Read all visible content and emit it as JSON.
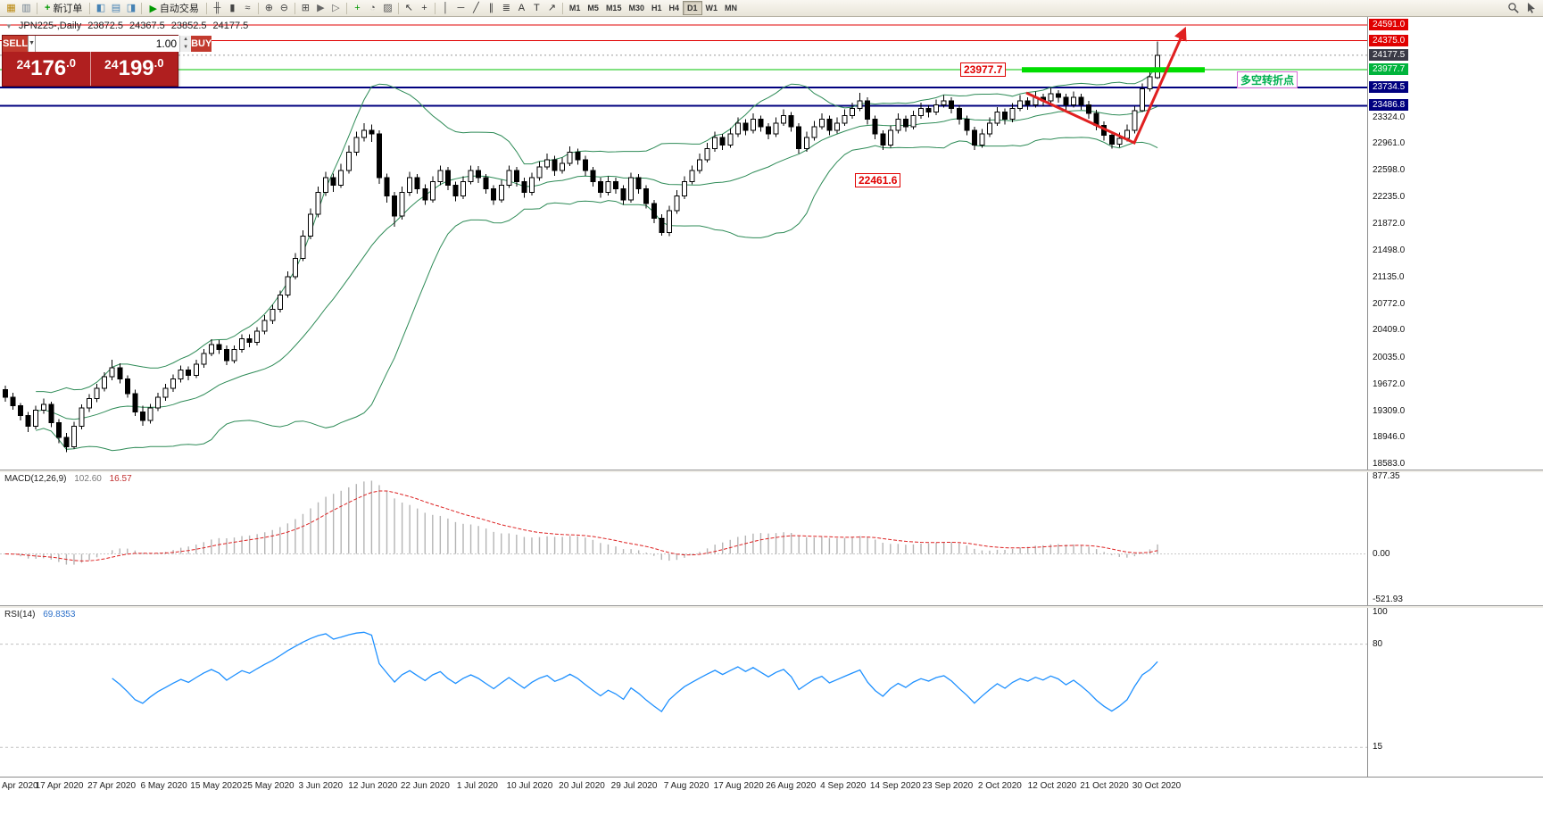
{
  "toolbar": {
    "groups": [
      {
        "items": [
          {
            "name": "new-chart-icon",
            "glyph": "▦",
            "color": "#b8860b"
          },
          {
            "name": "profiles-icon",
            "glyph": "▥",
            "color": "#708090"
          }
        ]
      },
      {
        "items": [
          {
            "name": "new-order-button",
            "label": "新订单",
            "glyph": "+",
            "glyph_color": "#009900"
          }
        ]
      },
      {
        "items": [
          {
            "name": "market-watch-icon",
            "glyph": "◧",
            "color": "#4682b4"
          },
          {
            "name": "data-window-icon",
            "glyph": "▤",
            "color": "#4682b4"
          },
          {
            "name": "navigator-icon",
            "glyph": "◨",
            "color": "#4682b4"
          }
        ]
      },
      {
        "items": [
          {
            "name": "autotrading-button",
            "label": "自动交易",
            "glyph": "▶",
            "glyph_color": "#009900"
          }
        ]
      },
      {
        "items": [
          {
            "name": "bar-chart-icon",
            "glyph": "╫",
            "color": "#444"
          },
          {
            "name": "candle-chart-icon",
            "glyph": "▮",
            "color": "#444"
          },
          {
            "name": "line-chart-icon",
            "glyph": "≈",
            "color": "#444"
          }
        ]
      },
      {
        "items": [
          {
            "name": "zoom-in-icon",
            "glyph": "⊕",
            "color": "#444"
          },
          {
            "name": "zoom-out-icon",
            "glyph": "⊖",
            "color": "#444"
          }
        ]
      },
      {
        "items": [
          {
            "name": "tile-windows-icon",
            "glyph": "⊞",
            "color": "#444"
          },
          {
            "name": "auto-scroll-icon",
            "glyph": "▶",
            "color": "#666"
          },
          {
            "name": "chart-shift-icon",
            "glyph": "▷",
            "color": "#666"
          }
        ]
      },
      {
        "items": [
          {
            "name": "indicators-icon",
            "glyph": "+",
            "color": "#009900"
          },
          {
            "name": "periods-list-icon",
            "glyph": "◔",
            "color": "#555"
          },
          {
            "name": "templates-icon",
            "glyph": "▨",
            "color": "#555"
          }
        ]
      },
      {
        "items": [
          {
            "name": "cursor-icon",
            "glyph": "↖",
            "color": "#333"
          },
          {
            "name": "crosshair-icon",
            "glyph": "+",
            "color": "#333"
          }
        ]
      },
      {
        "items": [
          {
            "name": "vertical-line-icon",
            "glyph": "│",
            "color": "#333"
          },
          {
            "name": "horizontal-line-icon",
            "glyph": "─",
            "color": "#333"
          },
          {
            "name": "trendline-icon",
            "glyph": "╱",
            "color": "#333"
          },
          {
            "name": "channel-icon",
            "glyph": "∥",
            "color": "#333"
          },
          {
            "name": "fibonacci-icon",
            "glyph": "≣",
            "color": "#333"
          },
          {
            "name": "text-icon",
            "glyph": "A",
            "color": "#333"
          },
          {
            "name": "label-icon",
            "glyph": "T",
            "color": "#333"
          },
          {
            "name": "arrows-icon",
            "glyph": "↗",
            "color": "#333"
          }
        ]
      },
      {
        "type": "tf",
        "items": [
          {
            "name": "tf-m1",
            "label": "M1"
          },
          {
            "name": "tf-m5",
            "label": "M5"
          },
          {
            "name": "tf-m15",
            "label": "M15"
          },
          {
            "name": "tf-m30",
            "label": "M30"
          },
          {
            "name": "tf-h1",
            "label": "H1"
          },
          {
            "name": "tf-h4",
            "label": "H4"
          },
          {
            "name": "tf-d1",
            "label": "D1",
            "active": true
          },
          {
            "name": "tf-w1",
            "label": "W1"
          },
          {
            "name": "tf-mn",
            "label": "MN"
          }
        ]
      }
    ]
  },
  "title": {
    "symbol_period": "JPN225-,Daily",
    "open": "23872.5",
    "high": "24367.5",
    "low": "23852.5",
    "close": "24177.5"
  },
  "one_click": {
    "sell_label": "SELL",
    "buy_label": "BUY",
    "volume": "1.00",
    "sell_price": "24176.0",
    "buy_price": "24199.0"
  },
  "chart_data": {
    "type": "candlestick",
    "symbol": "JPN225",
    "period": "Daily",
    "y_axis": {
      "top_price": 24591.0,
      "bottom_price": 18583.0
    },
    "price_axis": {
      "ticks": [
        "23324.0",
        "22961.0",
        "22598.0",
        "22235.0",
        "21872.0",
        "21498.0",
        "21135.0",
        "20772.0",
        "20409.0",
        "20035.0",
        "19672.0",
        "19309.0",
        "18946.0",
        "18583.0"
      ],
      "badges": [
        {
          "value": "24591.0",
          "bg": "#e00000"
        },
        {
          "value": "24375.0",
          "bg": "#e00000"
        },
        {
          "value": "24177.5",
          "bg": "#3a3a46"
        },
        {
          "value": "23977.7",
          "bg": "#00b43c"
        },
        {
          "value": "23734.5",
          "bg": "#00007f"
        },
        {
          "value": "23486.8",
          "bg": "#00007f"
        }
      ]
    },
    "hlines": [
      {
        "price": 24591.0,
        "color": "#e00000",
        "width": 1
      },
      {
        "price": 24375.0,
        "color": "#e00000",
        "width": 1
      },
      {
        "price": 23977.7,
        "color": "#00c300",
        "width": 1
      },
      {
        "price": 23734.5,
        "color": "#00007f",
        "width": 2
      },
      {
        "price": 23486.8,
        "color": "#00007f",
        "width": 2
      }
    ],
    "current_price": {
      "value": 24177.5,
      "line_color": "#9a9a9a"
    },
    "overlays": {
      "bollinger": {
        "period": 20,
        "deviation": 2,
        "color": "#2e8b57"
      }
    },
    "annotations": {
      "level": {
        "text": "23977.7",
        "price": 23977.7,
        "bar_color": "#00dd00"
      },
      "low": {
        "text": "22461.6",
        "price": 22461.6
      },
      "note": {
        "text": "多空转折点",
        "color": "#00b050",
        "border_color": "#d66ad6"
      },
      "arrow_color": "#e02020"
    },
    "colors": {
      "up": "#ffffff",
      "down": "#000000",
      "wick": "#000000"
    },
    "dates": [
      "Apr 2020",
      "17 Apr 2020",
      "27 Apr 2020",
      "6 May 2020",
      "15 May 2020",
      "25 May 2020",
      "3 Jun 2020",
      "12 Jun 2020",
      "22 Jun 2020",
      "1 Jul 2020",
      "10 Jul 2020",
      "20 Jul 2020",
      "29 Jul 2020",
      "7 Aug 2020",
      "17 Aug 2020",
      "26 Aug 2020",
      "4 Sep 2020",
      "14 Sep 2020",
      "23 Sep 2020",
      "2 Oct 2020",
      "12 Oct 2020",
      "21 Oct 2020",
      "30 Oct 2020"
    ],
    "candles": [
      [
        19600,
        19660,
        19440,
        19500
      ],
      [
        19500,
        19560,
        19330,
        19380
      ],
      [
        19380,
        19420,
        19180,
        19250
      ],
      [
        19250,
        19300,
        19020,
        19100
      ],
      [
        19100,
        19380,
        19060,
        19320
      ],
      [
        19320,
        19480,
        19270,
        19400
      ],
      [
        19400,
        19440,
        19090,
        19150
      ],
      [
        19150,
        19200,
        18870,
        18950
      ],
      [
        18950,
        19010,
        18750,
        18820
      ],
      [
        18820,
        19160,
        18790,
        19100
      ],
      [
        19100,
        19400,
        19060,
        19350
      ],
      [
        19350,
        19540,
        19300,
        19480
      ],
      [
        19480,
        19680,
        19430,
        19620
      ],
      [
        19620,
        19840,
        19580,
        19780
      ],
      [
        19780,
        20010,
        19730,
        19900
      ],
      [
        19900,
        19960,
        19690,
        19750
      ],
      [
        19750,
        19800,
        19490,
        19550
      ],
      [
        19550,
        19600,
        19240,
        19300
      ],
      [
        19300,
        19380,
        19110,
        19180
      ],
      [
        19180,
        19410,
        19140,
        19350
      ],
      [
        19350,
        19560,
        19310,
        19500
      ],
      [
        19500,
        19680,
        19450,
        19620
      ],
      [
        19620,
        19810,
        19570,
        19750
      ],
      [
        19750,
        19930,
        19700,
        19870
      ],
      [
        19870,
        19920,
        19730,
        19800
      ],
      [
        19800,
        20010,
        19760,
        19950
      ],
      [
        19950,
        20160,
        19900,
        20100
      ],
      [
        20100,
        20290,
        20060,
        20220
      ],
      [
        20220,
        20280,
        20090,
        20150
      ],
      [
        20150,
        20210,
        19940,
        20000
      ],
      [
        20000,
        20210,
        19960,
        20150
      ],
      [
        20150,
        20360,
        20110,
        20300
      ],
      [
        20300,
        20360,
        20180,
        20250
      ],
      [
        20250,
        20460,
        20210,
        20400
      ],
      [
        20400,
        20620,
        20360,
        20550
      ],
      [
        20550,
        20760,
        20500,
        20700
      ],
      [
        20700,
        20960,
        20660,
        20900
      ],
      [
        20900,
        21220,
        20860,
        21150
      ],
      [
        21150,
        21470,
        21110,
        21400
      ],
      [
        21400,
        21780,
        21360,
        21700
      ],
      [
        21700,
        22080,
        21660,
        22000
      ],
      [
        22000,
        22380,
        21960,
        22300
      ],
      [
        22300,
        22580,
        22250,
        22500
      ],
      [
        22500,
        22560,
        22310,
        22400
      ],
      [
        22400,
        22690,
        22360,
        22600
      ],
      [
        22600,
        22940,
        22560,
        22850
      ],
      [
        22850,
        23130,
        22800,
        23050
      ],
      [
        23050,
        23250,
        23000,
        23150
      ],
      [
        23150,
        23230,
        22990,
        23100
      ],
      [
        23100,
        23150,
        22420,
        22500
      ],
      [
        22500,
        22560,
        22160,
        22250
      ],
      [
        22250,
        22310,
        21830,
        21980
      ],
      [
        21980,
        22380,
        21930,
        22300
      ],
      [
        22300,
        22580,
        22250,
        22500
      ],
      [
        22500,
        22550,
        22280,
        22350
      ],
      [
        22350,
        22410,
        22130,
        22200
      ],
      [
        22200,
        22520,
        22160,
        22450
      ],
      [
        22450,
        22670,
        22400,
        22600
      ],
      [
        22600,
        22650,
        22330,
        22400
      ],
      [
        22400,
        22450,
        22180,
        22250
      ],
      [
        22250,
        22520,
        22210,
        22450
      ],
      [
        22450,
        22670,
        22410,
        22600
      ],
      [
        22600,
        22660,
        22430,
        22500
      ],
      [
        22500,
        22550,
        22280,
        22350
      ],
      [
        22350,
        22400,
        22130,
        22200
      ],
      [
        22200,
        22470,
        22160,
        22400
      ],
      [
        22400,
        22670,
        22360,
        22600
      ],
      [
        22600,
        22650,
        22380,
        22450
      ],
      [
        22450,
        22500,
        22230,
        22300
      ],
      [
        22300,
        22570,
        22260,
        22500
      ],
      [
        22500,
        22720,
        22460,
        22650
      ],
      [
        22650,
        22830,
        22610,
        22750
      ],
      [
        22750,
        22800,
        22530,
        22600
      ],
      [
        22600,
        22780,
        22560,
        22700
      ],
      [
        22700,
        22930,
        22660,
        22850
      ],
      [
        22850,
        22900,
        22680,
        22750
      ],
      [
        22750,
        22800,
        22530,
        22600
      ],
      [
        22600,
        22650,
        22380,
        22450
      ],
      [
        22450,
        22500,
        22230,
        22300
      ],
      [
        22300,
        22520,
        22260,
        22450
      ],
      [
        22450,
        22500,
        22280,
        22350
      ],
      [
        22350,
        22400,
        22130,
        22200
      ],
      [
        22200,
        22570,
        22160,
        22500
      ],
      [
        22500,
        22550,
        22280,
        22350
      ],
      [
        22350,
        22400,
        22080,
        22150
      ],
      [
        22150,
        22200,
        21880,
        21950
      ],
      [
        21950,
        22000,
        21710,
        21750
      ],
      [
        21750,
        22120,
        21700,
        22050
      ],
      [
        22050,
        22330,
        22010,
        22250
      ],
      [
        22250,
        22520,
        22210,
        22450
      ],
      [
        22450,
        22670,
        22410,
        22600
      ],
      [
        22600,
        22830,
        22560,
        22750
      ],
      [
        22750,
        22980,
        22710,
        22900
      ],
      [
        22900,
        23130,
        22860,
        23050
      ],
      [
        23050,
        23100,
        22880,
        22950
      ],
      [
        22950,
        23180,
        22910,
        23100
      ],
      [
        23100,
        23330,
        23060,
        23250
      ],
      [
        23250,
        23300,
        23080,
        23150
      ],
      [
        23150,
        23380,
        23110,
        23300
      ],
      [
        23300,
        23350,
        23130,
        23200
      ],
      [
        23200,
        23250,
        23030,
        23100
      ],
      [
        23100,
        23330,
        23060,
        23250
      ],
      [
        23250,
        23440,
        23210,
        23350
      ],
      [
        23350,
        23400,
        23130,
        23200
      ],
      [
        23200,
        23250,
        22830,
        22900
      ],
      [
        22900,
        23130,
        22860,
        23050
      ],
      [
        23050,
        23280,
        23010,
        23200
      ],
      [
        23200,
        23380,
        23160,
        23300
      ],
      [
        23300,
        23350,
        23080,
        23150
      ],
      [
        23150,
        23330,
        23110,
        23250
      ],
      [
        23250,
        23440,
        23210,
        23350
      ],
      [
        23350,
        23530,
        23310,
        23450
      ],
      [
        23450,
        23660,
        23410,
        23550
      ],
      [
        23550,
        23600,
        23230,
        23300
      ],
      [
        23300,
        23350,
        23030,
        23100
      ],
      [
        23100,
        23150,
        22880,
        22950
      ],
      [
        22950,
        23220,
        22910,
        23150
      ],
      [
        23150,
        23380,
        23110,
        23300
      ],
      [
        23300,
        23350,
        23130,
        23200
      ],
      [
        23200,
        23420,
        23160,
        23350
      ],
      [
        23350,
        23530,
        23310,
        23450
      ],
      [
        23450,
        23500,
        23330,
        23400
      ],
      [
        23400,
        23570,
        23360,
        23500
      ],
      [
        23500,
        23630,
        23460,
        23550
      ],
      [
        23550,
        23600,
        23380,
        23450
      ],
      [
        23450,
        23500,
        23230,
        23300
      ],
      [
        23300,
        23350,
        23080,
        23150
      ],
      [
        23150,
        23200,
        22880,
        22950
      ],
      [
        22950,
        23170,
        22910,
        23100
      ],
      [
        23100,
        23330,
        23060,
        23250
      ],
      [
        23250,
        23470,
        23210,
        23400
      ],
      [
        23400,
        23450,
        23230,
        23300
      ],
      [
        23300,
        23520,
        23260,
        23450
      ],
      [
        23450,
        23630,
        23410,
        23550
      ],
      [
        23550,
        23600,
        23430,
        23500
      ],
      [
        23500,
        23680,
        23460,
        23600
      ],
      [
        23600,
        23650,
        23480,
        23550
      ],
      [
        23550,
        23730,
        23510,
        23650
      ],
      [
        23650,
        23700,
        23530,
        23600
      ],
      [
        23600,
        23650,
        23430,
        23500
      ],
      [
        23500,
        23680,
        23460,
        23600
      ],
      [
        23600,
        23650,
        23430,
        23500
      ],
      [
        23500,
        23550,
        23310,
        23380
      ],
      [
        23380,
        23430,
        23150,
        23220
      ],
      [
        23220,
        23270,
        23010,
        23080
      ],
      [
        23080,
        23130,
        22900,
        22960
      ],
      [
        22960,
        23120,
        22920,
        23040
      ],
      [
        23040,
        23230,
        23000,
        23150
      ],
      [
        23150,
        23480,
        23110,
        23420
      ],
      [
        23420,
        23790,
        23400,
        23720
      ],
      [
        23720,
        23950,
        23680,
        23880
      ],
      [
        23872.5,
        24367.5,
        23852.5,
        24177.5
      ]
    ]
  },
  "indicators": {
    "macd": {
      "name": "MACD(12,26,9)",
      "value_main": "102.60",
      "value_signal": "16.57",
      "fast": 12,
      "slow": 26,
      "signal": 9,
      "scale": {
        "max": 877.35,
        "min": -521.93
      },
      "scale_labels": [
        "877.35",
        "0.00",
        "-521.93"
      ],
      "hist_color": "#b4b4b4",
      "signal_color": "#dd2222"
    },
    "rsi": {
      "name": "RSI(14)",
      "value": "69.8353",
      "period": 14,
      "levels": [
        80,
        15
      ],
      "scale_ticks": [
        "100",
        "80",
        "15"
      ],
      "line_color": "#1e90ff"
    }
  }
}
